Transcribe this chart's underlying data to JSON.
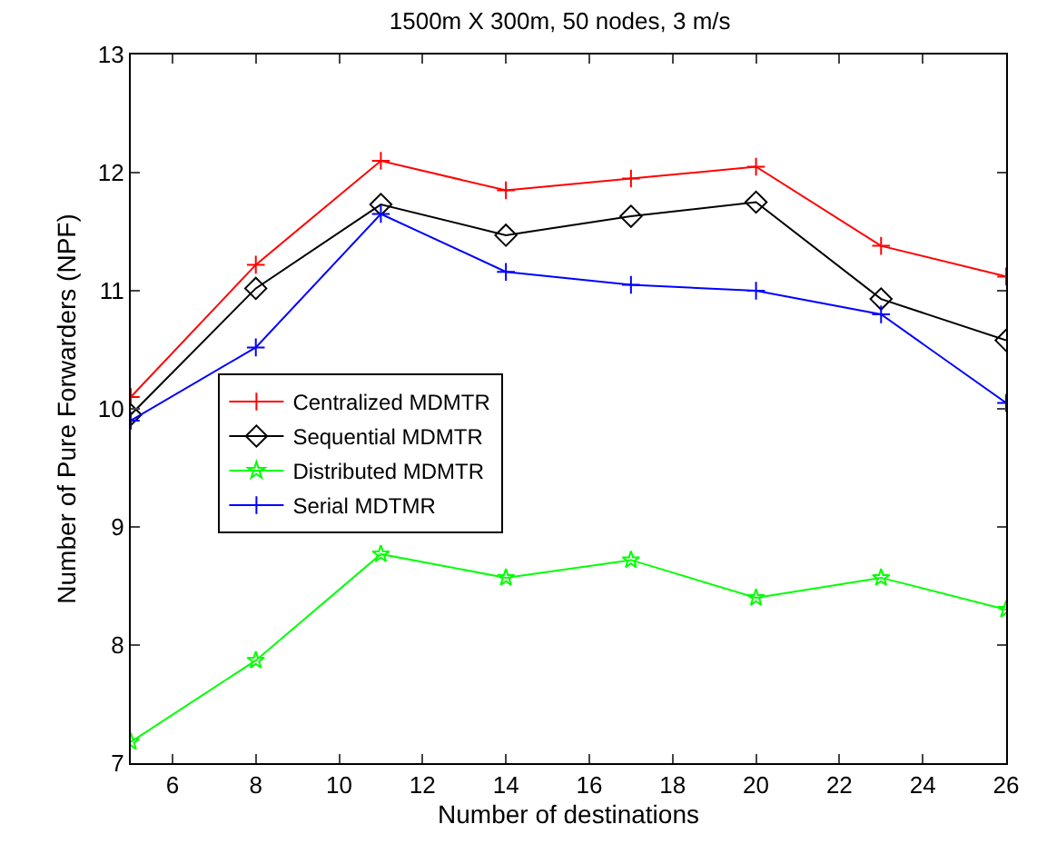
{
  "chart_data": {
    "type": "line",
    "title": "1500m X 300m, 50 nodes, 3 m/s",
    "xlabel": "Number of destinations",
    "ylabel": "Number of Pure Forwarders (NPF)",
    "x": [
      5,
      8,
      11,
      14,
      17,
      20,
      23,
      26
    ],
    "series": [
      {
        "name": "Centralized MDMTR",
        "color": "#ff0000",
        "marker": "cross",
        "values": [
          10.1,
          11.22,
          12.1,
          11.85,
          11.95,
          12.05,
          11.38,
          11.12
        ]
      },
      {
        "name": "Sequential MDMTR",
        "color": "#000000",
        "marker": "diamond",
        "values": [
          9.95,
          11.02,
          11.73,
          11.47,
          11.63,
          11.75,
          10.93,
          10.58
        ]
      },
      {
        "name": "Distributed MDMTR",
        "color": "#00ff00",
        "marker": "star",
        "values": [
          7.18,
          7.87,
          8.77,
          8.57,
          8.72,
          8.4,
          8.57,
          8.3
        ]
      },
      {
        "name": "Serial MDTMR",
        "color": "#0000ff",
        "marker": "cross",
        "values": [
          9.9,
          10.52,
          11.65,
          11.16,
          11.05,
          11.0,
          10.8,
          10.05
        ]
      }
    ],
    "xlim": [
      5,
      26
    ],
    "xticks": [
      6,
      8,
      10,
      12,
      14,
      16,
      18,
      20,
      22,
      24,
      26
    ],
    "ylim": [
      7,
      13
    ],
    "yticks": [
      7,
      8,
      9,
      10,
      11,
      12,
      13
    ],
    "grid": false,
    "legend": "left",
    "line_style": "solid"
  }
}
